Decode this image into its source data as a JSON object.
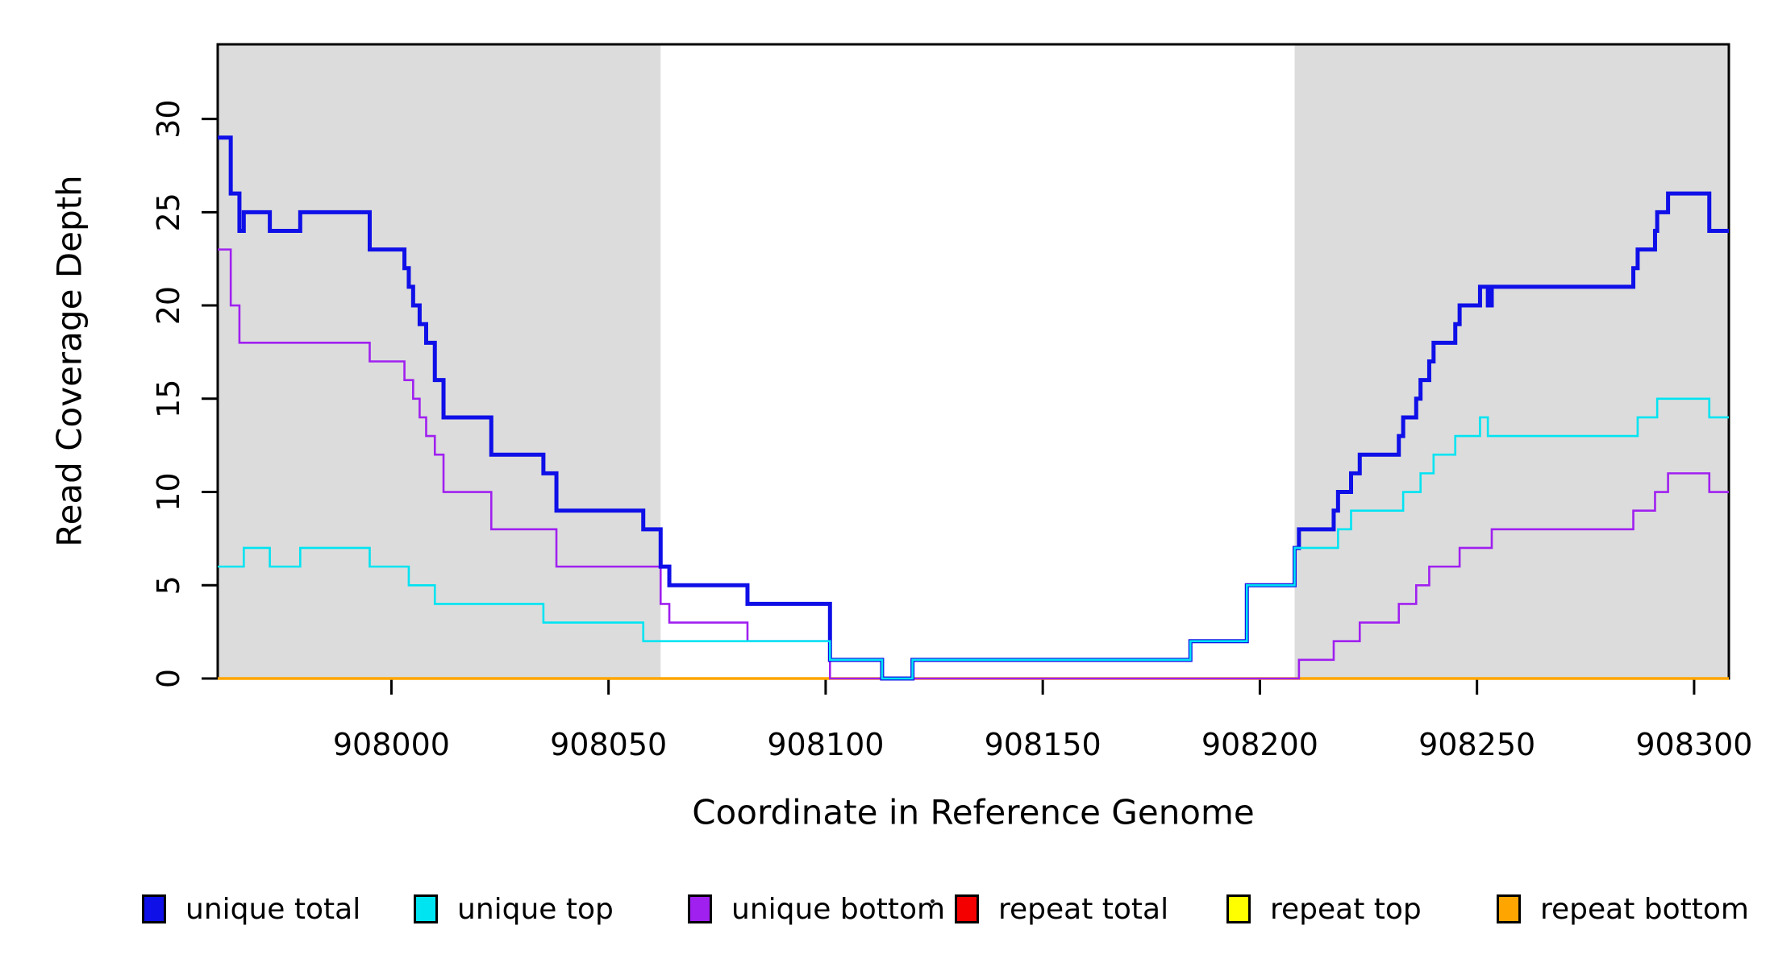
{
  "chart_data": {
    "type": "line",
    "subtype": "step-post",
    "title": "",
    "xlabel": "Coordinate in Reference Genome",
    "ylabel": "Read Coverage Depth",
    "xlim": [
      907960,
      908308
    ],
    "ylim": [
      0,
      34
    ],
    "x_ticks": [
      908000,
      908050,
      908100,
      908150,
      908200,
      908250,
      908300
    ],
    "y_ticks": [
      0,
      5,
      10,
      15,
      20,
      25,
      30
    ],
    "grid": "off",
    "plot_background": "#ffffff",
    "shaded_regions": [
      {
        "x0": 907960,
        "x1": 908062,
        "color": "#dcdcdc"
      },
      {
        "x0": 908208,
        "x1": 908308,
        "color": "#dcdcdc"
      }
    ],
    "series": [
      {
        "name": "repeat total",
        "color": "#f50000",
        "width": 2.5,
        "points": [
          [
            907960,
            0
          ]
        ]
      },
      {
        "name": "repeat top",
        "color": "#ffff00",
        "width": 2.5,
        "points": [
          [
            907960,
            0
          ]
        ]
      },
      {
        "name": "repeat bottom",
        "color": "#ffa500",
        "width": 3.5,
        "points": [
          [
            907960,
            0
          ]
        ]
      },
      {
        "name": "unique bottom",
        "color": "#a020f0",
        "width": 2.6,
        "points": [
          [
            907960,
            23
          ],
          [
            907963,
            20
          ],
          [
            907965,
            18
          ],
          [
            907995,
            17
          ],
          [
            908003,
            16
          ],
          [
            908005,
            15
          ],
          [
            908006.5,
            14
          ],
          [
            908008,
            13
          ],
          [
            908010,
            12
          ],
          [
            908012,
            10
          ],
          [
            908023,
            8
          ],
          [
            908038,
            6
          ],
          [
            908062,
            4
          ],
          [
            908064,
            3
          ],
          [
            908082,
            2
          ],
          [
            908101,
            0
          ],
          [
            908209,
            1
          ],
          [
            908217,
            2
          ],
          [
            908223,
            3
          ],
          [
            908232,
            4
          ],
          [
            908236,
            5
          ],
          [
            908239,
            6
          ],
          [
            908246,
            7
          ],
          [
            908253.4,
            8
          ],
          [
            908286,
            9
          ],
          [
            908291,
            10
          ],
          [
            908294,
            11
          ],
          [
            908303.5,
            10
          ]
        ]
      },
      {
        "name": "unique total",
        "color": "#0f0fe8",
        "width": 5,
        "points": [
          [
            907960,
            29
          ],
          [
            907963,
            26
          ],
          [
            907965,
            24
          ],
          [
            907966,
            25
          ],
          [
            907972,
            24
          ],
          [
            907979,
            25
          ],
          [
            907995,
            23
          ],
          [
            908003,
            22
          ],
          [
            908004,
            21
          ],
          [
            908005,
            20
          ],
          [
            908006.5,
            19
          ],
          [
            908008,
            18
          ],
          [
            908010,
            16
          ],
          [
            908012,
            14
          ],
          [
            908023,
            12
          ],
          [
            908035,
            11
          ],
          [
            908038,
            9
          ],
          [
            908058,
            8
          ],
          [
            908062,
            6
          ],
          [
            908064,
            5
          ],
          [
            908082,
            4
          ],
          [
            908101,
            1
          ],
          [
            908113,
            0
          ],
          [
            908120,
            1
          ],
          [
            908184,
            2
          ],
          [
            908197,
            5
          ],
          [
            908208,
            7
          ],
          [
            908209,
            8
          ],
          [
            908217,
            9
          ],
          [
            908218,
            10
          ],
          [
            908221,
            11
          ],
          [
            908223,
            12
          ],
          [
            908232,
            13
          ],
          [
            908233,
            14
          ],
          [
            908236,
            15
          ],
          [
            908237,
            16
          ],
          [
            908239,
            17
          ],
          [
            908240,
            18
          ],
          [
            908245,
            19
          ],
          [
            908246,
            20
          ],
          [
            908250.7,
            21
          ],
          [
            908252.5,
            20
          ],
          [
            908253.4,
            21
          ],
          [
            908286,
            22
          ],
          [
            908287,
            23
          ],
          [
            908291,
            24
          ],
          [
            908291.5,
            25
          ],
          [
            908294,
            26
          ],
          [
            908303.5,
            24
          ]
        ]
      },
      {
        "name": "unique top",
        "color": "#00e4f2",
        "width": 2.6,
        "points": [
          [
            907960,
            6
          ],
          [
            907966,
            7
          ],
          [
            907972,
            6
          ],
          [
            907979,
            7
          ],
          [
            907995,
            6
          ],
          [
            908004,
            5
          ],
          [
            908010,
            4
          ],
          [
            908035,
            3
          ],
          [
            908058,
            2
          ],
          [
            908101,
            1
          ],
          [
            908113,
            0
          ],
          [
            908120,
            1
          ],
          [
            908184,
            2
          ],
          [
            908197,
            5
          ],
          [
            908208,
            7
          ],
          [
            908218,
            8
          ],
          [
            908221,
            9
          ],
          [
            908233,
            10
          ],
          [
            908237,
            11
          ],
          [
            908240,
            12
          ],
          [
            908245,
            13
          ],
          [
            908250.7,
            14
          ],
          [
            908252.5,
            13
          ],
          [
            908287,
            14
          ],
          [
            908291.5,
            15
          ],
          [
            908303.5,
            14
          ]
        ]
      }
    ],
    "legend": {
      "position": "bottom",
      "entries": [
        {
          "label": "unique total",
          "color": "#0f0fe8"
        },
        {
          "label": "unique top",
          "color": "#00e4f2"
        },
        {
          "label": "unique bottom",
          "color": "#a020f0"
        },
        {
          "label": "repeat total",
          "color": "#f50000"
        },
        {
          "label": "repeat top",
          "color": "#ffff00"
        },
        {
          "label": "repeat bottom",
          "color": "#ffa500"
        }
      ]
    },
    "axis_color": "#000000",
    "tick_label_font_px": 38,
    "axis_title_font_px": 42
  }
}
